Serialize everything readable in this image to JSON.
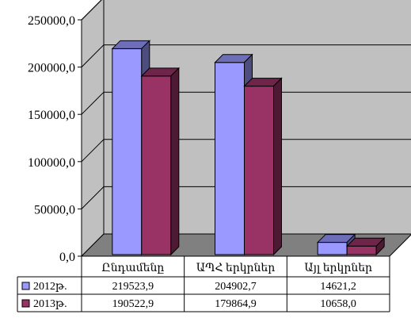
{
  "chart_data": {
    "type": "bar",
    "categories": [
      "Ընդամենը",
      "ԱՊՀ երկրներ",
      "Այլ երկրներ"
    ],
    "series": [
      {
        "name": "2012թ.",
        "values": [
          219523.9,
          204902.7,
          14621.2
        ],
        "labels": [
          "219523,9",
          "204902,7",
          "14621,2"
        ],
        "color": "#9999ff"
      },
      {
        "name": "2013թ.",
        "values": [
          190522.9,
          179864.9,
          10658.0
        ],
        "labels": [
          "190522,9",
          "179864,9",
          "10658,0"
        ],
        "color": "#993366"
      }
    ],
    "ylim": [
      0,
      250000
    ],
    "yticks": [
      0,
      50000,
      100000,
      150000,
      200000,
      250000
    ],
    "ytick_labels": [
      "0,0",
      "50000,0",
      "100000,0",
      "150000,0",
      "200000,0",
      "250000,0"
    ],
    "grid": true,
    "legend": "data-table-below",
    "three_d": true,
    "wall_color": "#c0c0c0",
    "floor_color": "#808080"
  }
}
